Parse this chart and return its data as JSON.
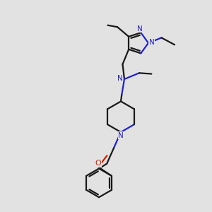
{
  "bg_color": "#e2e2e2",
  "bond_color": "#1a1a1a",
  "N_color": "#2222cc",
  "O_color": "#cc2200",
  "line_width": 1.6,
  "figsize": [
    3.0,
    3.0
  ],
  "dpi": 100,
  "xlim": [
    -1,
    11
  ],
  "ylim": [
    -1,
    11
  ]
}
